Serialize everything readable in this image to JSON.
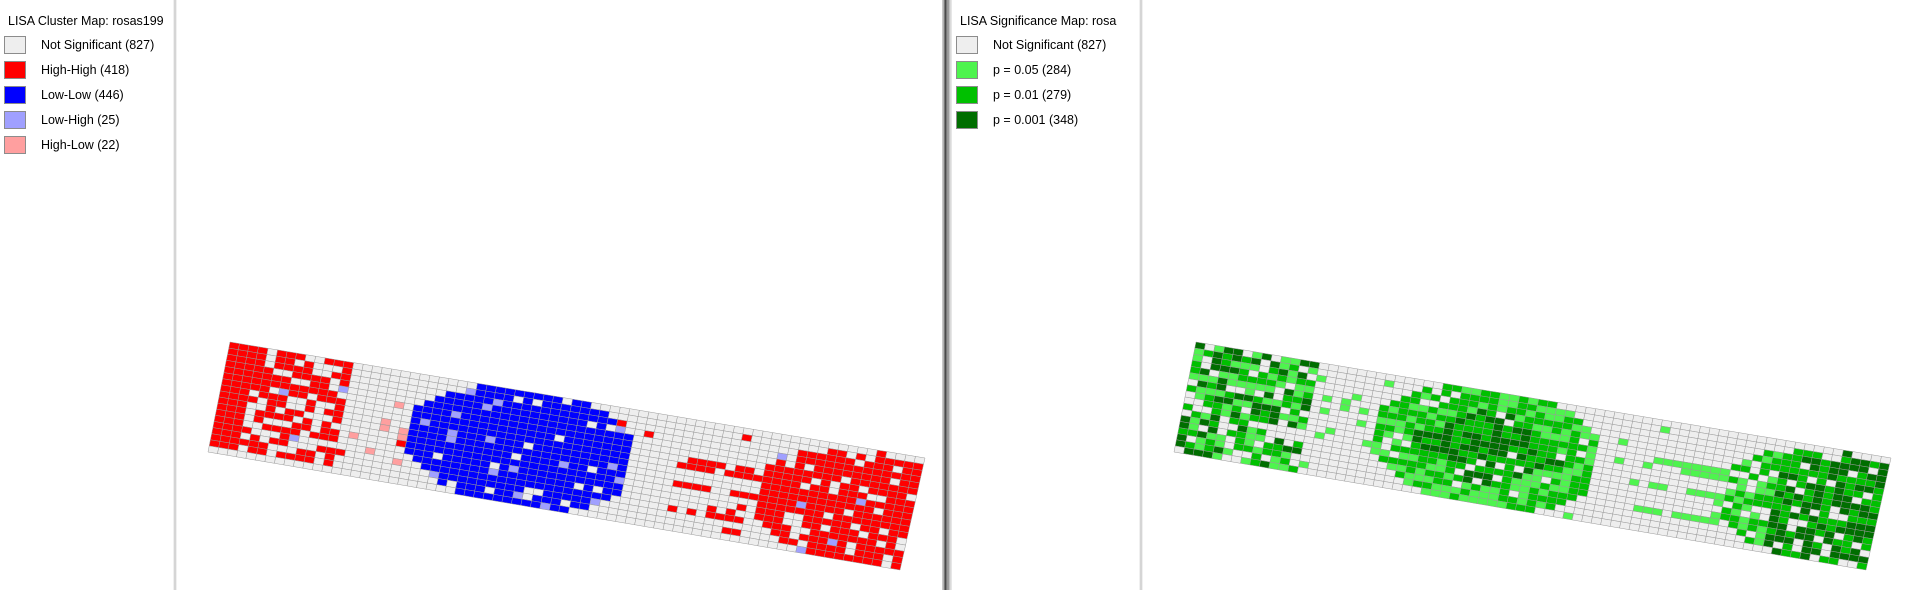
{
  "left_panel": {
    "title": "LISA Cluster Map: rosas199",
    "legend": [
      {
        "label": "Not Significant (827)",
        "color": "#eeeeee"
      },
      {
        "label": "High-High (418)",
        "color": "#ff0000"
      },
      {
        "label": "Low-Low (446)",
        "color": "#0000ff"
      },
      {
        "label": "Low-High (25)",
        "color": "#a0a0ff"
      },
      {
        "label": "High-Low (22)",
        "color": "#ff9f9f"
      }
    ]
  },
  "right_panel": {
    "title": "LISA Significance Map: rosa",
    "legend": [
      {
        "label": "Not Significant (827)",
        "color": "#eeeeee"
      },
      {
        "label": "p = 0.05 (284)",
        "color": "#4ef44e"
      },
      {
        "label": "p = 0.01 (279)",
        "color": "#00c000"
      },
      {
        "label": "p = 0.001 (348)",
        "color": "#006e00"
      }
    ]
  }
}
